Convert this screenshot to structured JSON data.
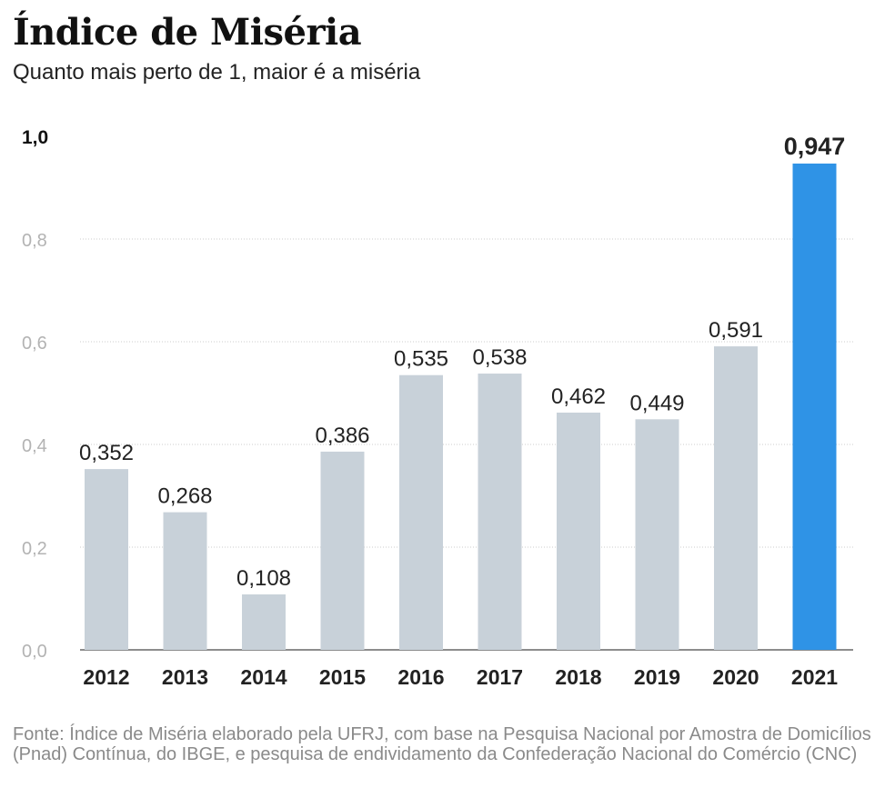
{
  "title": "Índice de Miséria",
  "subtitle": "Quanto mais perto de 1, maior é a miséria",
  "source": "Fonte: Índice de Miséria elaborado pela UFRJ, com base na Pesquisa Nacional por Amostra de Domicílios (Pnad) Contínua, do IBGE, e pesquisa de endividamento da Confederação Nacional do Comércio (CNC)",
  "colors": {
    "bar": "#c8d1d9",
    "highlight": "#2f93e6",
    "grid": "#cccccc",
    "axis": "#666666"
  },
  "chart_data": {
    "type": "bar",
    "title": "Índice de Miséria",
    "xlabel": "",
    "ylabel": "",
    "ylim": [
      0,
      1.0
    ],
    "grid": true,
    "categories": [
      "2012",
      "2013",
      "2014",
      "2015",
      "2016",
      "2017",
      "2018",
      "2019",
      "2020",
      "2021"
    ],
    "values": [
      0.352,
      0.268,
      0.108,
      0.386,
      0.535,
      0.538,
      0.462,
      0.449,
      0.591,
      0.947
    ],
    "value_labels": [
      "0,352",
      "0,268",
      "0,108",
      "0,386",
      "0,535",
      "0,538",
      "0,462",
      "0,449",
      "0,591",
      "0,947"
    ],
    "yticks": [
      0,
      0.2,
      0.4,
      0.6,
      0.8,
      1.0
    ],
    "ytick_labels": [
      "0,0",
      "0,2",
      "0,4",
      "0,6",
      "0,8",
      "1,0"
    ],
    "highlight_index": 9
  }
}
